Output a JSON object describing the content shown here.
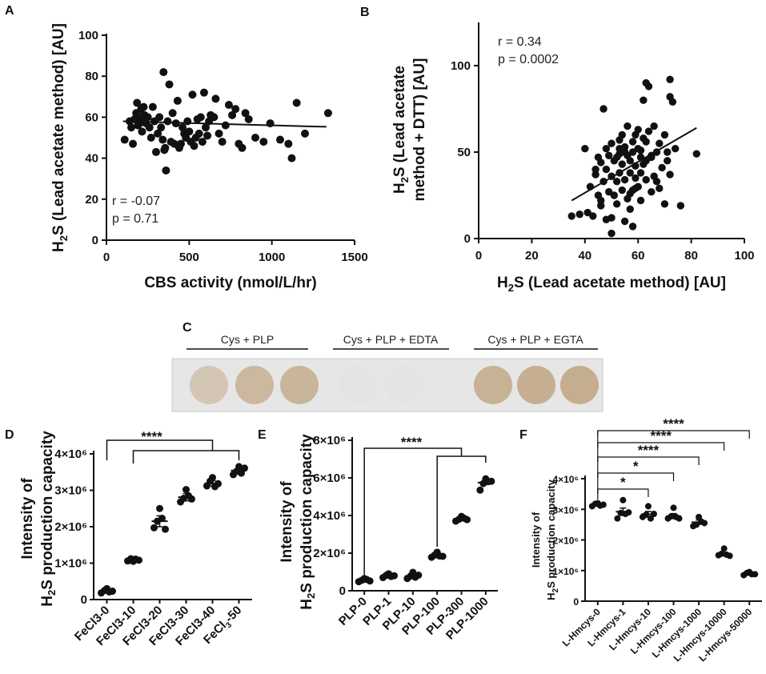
{
  "colors": {
    "ink": "#111111",
    "strip_bg": "#e4e4e4",
    "spot_fill": "#d6c7b0",
    "spot_faint": "#e0dcd5"
  },
  "chart_data": [
    {
      "id": "A",
      "type": "scatter",
      "xlabel": "CBS activity (nmol/L/hr)",
      "ylabel_parts": [
        "H",
        "2",
        "S (Lead acetate method) [AU]"
      ],
      "xlim": [
        0,
        1500
      ],
      "ylim": [
        0,
        100
      ],
      "xticks": [
        "0",
        "500",
        "1000",
        "1500"
      ],
      "xtick_values": [
        0,
        500,
        1000,
        1500
      ],
      "yticks": [
        "0",
        "20",
        "40",
        "60",
        "80",
        "100"
      ],
      "ytick_values": [
        0,
        20,
        40,
        60,
        80,
        100
      ],
      "stats": [
        "r = -0.07",
        "p = 0.71"
      ],
      "fit_line": {
        "x": [
          100,
          1330
        ],
        "y": [
          58,
          55.3
        ]
      },
      "x": [
        110,
        140,
        150,
        160,
        170,
        180,
        185,
        190,
        200,
        205,
        210,
        215,
        220,
        225,
        230,
        240,
        250,
        260,
        270,
        280,
        290,
        300,
        310,
        320,
        330,
        340,
        345,
        350,
        355,
        360,
        370,
        380,
        390,
        400,
        410,
        420,
        430,
        440,
        450,
        460,
        470,
        480,
        490,
        500,
        510,
        520,
        530,
        540,
        550,
        560,
        570,
        580,
        590,
        600,
        610,
        620,
        630,
        650,
        660,
        680,
        700,
        720,
        740,
        760,
        780,
        800,
        820,
        840,
        860,
        900,
        950,
        990,
        1050,
        1100,
        1120,
        1150,
        1200,
        1340
      ],
      "y": [
        49,
        58,
        55,
        47,
        59,
        62,
        67,
        56,
        57,
        60,
        64,
        53,
        58,
        65,
        61,
        57,
        60,
        55,
        50,
        65,
        58,
        43,
        52,
        60,
        55,
        49,
        82,
        44,
        45,
        34,
        58,
        76,
        48,
        62,
        47,
        57,
        68,
        45,
        47,
        55,
        52,
        50,
        58,
        53,
        48,
        71,
        46,
        50,
        59,
        52,
        60,
        48,
        72,
        55,
        51,
        58,
        61,
        60,
        69,
        52,
        48,
        56,
        66,
        61,
        64,
        47,
        45,
        62,
        59,
        50,
        48,
        57,
        49,
        47,
        40,
        67,
        52,
        62
      ]
    },
    {
      "id": "B",
      "type": "scatter",
      "xlabel_parts": [
        "H",
        "2",
        "S (Lead acetate method) [AU]"
      ],
      "ylabel_line1": "(Lead acetate",
      "ylabel_line1_prefix_parts": [
        "H",
        "2",
        "S"
      ],
      "ylabel_line2": "method + DTT) [AU]",
      "xlim": [
        0,
        100
      ],
      "ylim": [
        0,
        125
      ],
      "xticks": [
        "0",
        "20",
        "40",
        "60",
        "80",
        "100"
      ],
      "xtick_values": [
        0,
        20,
        40,
        60,
        80,
        100
      ],
      "yticks": [
        "0",
        "50",
        "100"
      ],
      "ytick_values": [
        0,
        50,
        100
      ],
      "stats": [
        "r = 0.34",
        "p = 0.0002"
      ],
      "fit_line": {
        "x": [
          35,
          82
        ],
        "y": [
          22,
          64
        ]
      },
      "x": [
        35,
        38,
        40,
        41,
        42,
        43,
        44,
        45,
        45,
        46,
        46,
        47,
        47,
        48,
        48,
        49,
        49,
        50,
        50,
        50,
        51,
        51,
        52,
        52,
        52,
        53,
        53,
        53,
        54,
        54,
        54,
        55,
        55,
        55,
        56,
        56,
        56,
        57,
        57,
        57,
        58,
        58,
        58,
        58,
        59,
        59,
        59,
        60,
        60,
        60,
        61,
        61,
        61,
        62,
        62,
        62,
        63,
        63,
        63,
        64,
        64,
        65,
        65,
        66,
        66,
        67,
        68,
        68,
        69,
        70,
        70,
        71,
        72,
        72,
        72,
        73,
        74,
        76,
        82,
        48,
        50,
        53,
        55,
        57,
        59,
        61,
        63,
        65,
        67,
        71,
        46,
        44
      ],
      "y": [
        13,
        14,
        52,
        15,
        30,
        13,
        37,
        25,
        47,
        19,
        44,
        75,
        33,
        52,
        40,
        27,
        48,
        3,
        36,
        55,
        25,
        45,
        33,
        47,
        20,
        57,
        38,
        52,
        28,
        43,
        60,
        34,
        53,
        10,
        65,
        23,
        48,
        45,
        17,
        38,
        28,
        56,
        50,
        7,
        35,
        60,
        42,
        63,
        30,
        52,
        22,
        47,
        38,
        80,
        58,
        43,
        90,
        56,
        34,
        62,
        88,
        48,
        27,
        65,
        36,
        50,
        29,
        55,
        41,
        20,
        60,
        45,
        92,
        82,
        37,
        79,
        52,
        19,
        49,
        11,
        12,
        49,
        50,
        26,
        29,
        51,
        45,
        47,
        33,
        50,
        22,
        40
      ]
    },
    {
      "id": "D",
      "type": "scatter",
      "ylabel": "Intensity of",
      "ylabel2_parts": [
        "H",
        "2",
        "S production capacity"
      ],
      "categories": [
        "FeCl3-0",
        "FeCl3-10",
        "FeCl3-20",
        "FeCl3-30",
        "FeCl3-40",
        "FeCl3-50"
      ],
      "category_label_parts": [
        [
          "FeCl3-0"
        ],
        [
          "FeCl3-10"
        ],
        [
          "FeCl3-20"
        ],
        [
          "FeCl3-30"
        ],
        [
          "FeCl3-40"
        ],
        [
          "FeCl",
          "3",
          "-50"
        ]
      ],
      "ylim": [
        0,
        4000000
      ],
      "yticks": [
        "0",
        "1×10⁶",
        "2×10⁶",
        "3×10⁶",
        "4×10⁶"
      ],
      "ytick_values": [
        0,
        1000000,
        2000000,
        3000000,
        4000000
      ],
      "means": [
        240000,
        1080000,
        2150000,
        2810000,
        3190000,
        3540000
      ],
      "sem": [
        60000,
        40000,
        150000,
        100000,
        70000,
        70000
      ],
      "points": [
        [
          180000,
          250000,
          300000,
          210000,
          230000
        ],
        [
          1060000,
          1120000,
          1050000,
          1110000,
          1080000
        ],
        [
          1970000,
          2150000,
          2500000,
          2230000,
          1930000
        ],
        [
          2680000,
          2780000,
          3020000,
          2850000,
          2760000
        ],
        [
          3120000,
          3250000,
          3350000,
          3100000,
          3180000
        ],
        [
          3430000,
          3520000,
          3650000,
          3470000,
          3610000
        ]
      ],
      "significance": "****"
    },
    {
      "id": "E",
      "type": "scatter",
      "ylabel": "Intensity of",
      "ylabel2_parts": [
        "H",
        "2",
        "S production capacity"
      ],
      "categories": [
        "PLP-0",
        "PLP-1",
        "PLP-10",
        "PLP-100",
        "PLP-300",
        "PLP-1000"
      ],
      "ylim": [
        0,
        8000000
      ],
      "yticks": [
        "0",
        "2×10⁶",
        "4×10⁶",
        "6×10⁶",
        "8×10⁶"
      ],
      "ytick_values": [
        0,
        2000000,
        4000000,
        6000000,
        8000000
      ],
      "means": [
        570000,
        790000,
        780000,
        1880000,
        3830000,
        5750000
      ],
      "sem": [
        50000,
        60000,
        80000,
        70000,
        80000,
        100000
      ],
      "points": [
        [
          480000,
          560000,
          650000,
          600000,
          520000
        ],
        [
          700000,
          820000,
          900000,
          760000,
          800000
        ],
        [
          650000,
          780000,
          980000,
          720000,
          830000
        ],
        [
          1780000,
          1900000,
          2050000,
          1850000,
          1830000
        ],
        [
          3700000,
          3800000,
          3950000,
          3860000,
          3780000
        ],
        [
          5350000,
          5700000,
          5950000,
          5800000,
          5820000
        ]
      ],
      "significance": "****"
    },
    {
      "id": "F",
      "type": "scatter",
      "ylabel": "Intensity of",
      "ylabel2_parts": [
        "H",
        "2",
        "S production capacity"
      ],
      "categories": [
        "L-Hmcys-0",
        "L-Hmcys-1",
        "L-Hmcys-10",
        "L-Hmcys-100",
        "L-Hmcys-1000",
        "L-Hmcys-10000",
        "L-Hmcys-50000"
      ],
      "ylim": [
        0,
        4000000
      ],
      "yticks": [
        "0",
        "1×10⁶",
        "2×10⁶",
        "3×10⁶",
        "4×10⁶"
      ],
      "ytick_values": [
        0,
        1000000,
        2000000,
        3000000,
        4000000
      ],
      "means": [
        3150000,
        2920000,
        2840000,
        2780000,
        2580000,
        1550000,
        900000
      ],
      "sem": [
        30000,
        120000,
        90000,
        80000,
        70000,
        40000,
        30000
      ],
      "points": [
        [
          3100000,
          3180000,
          3200000,
          3120000,
          3150000
        ],
        [
          2700000,
          2880000,
          3300000,
          2850000,
          2900000
        ],
        [
          2750000,
          2820000,
          3100000,
          2700000,
          2850000
        ],
        [
          2700000,
          2770000,
          3050000,
          2750000,
          2700000
        ],
        [
          2450000,
          2500000,
          2750000,
          2600000,
          2550000
        ],
        [
          1500000,
          1550000,
          1720000,
          1520000,
          1480000
        ],
        [
          850000,
          920000,
          950000,
          880000,
          880000
        ]
      ],
      "significance": [
        "*",
        "*",
        "****",
        "****",
        "****"
      ]
    }
  ],
  "panel_c": {
    "letter": "C",
    "groups": [
      "Cys + PLP",
      "Cys + PLP + EDTA",
      "Cys + PLP + EGTA"
    ],
    "spot_intensity": [
      0.55,
      0.8,
      0.85,
      0.04,
      0.03,
      0.02,
      0.9,
      0.95,
      0.97
    ]
  },
  "panel_letters": [
    "A",
    "B",
    "D",
    "E",
    "F"
  ]
}
